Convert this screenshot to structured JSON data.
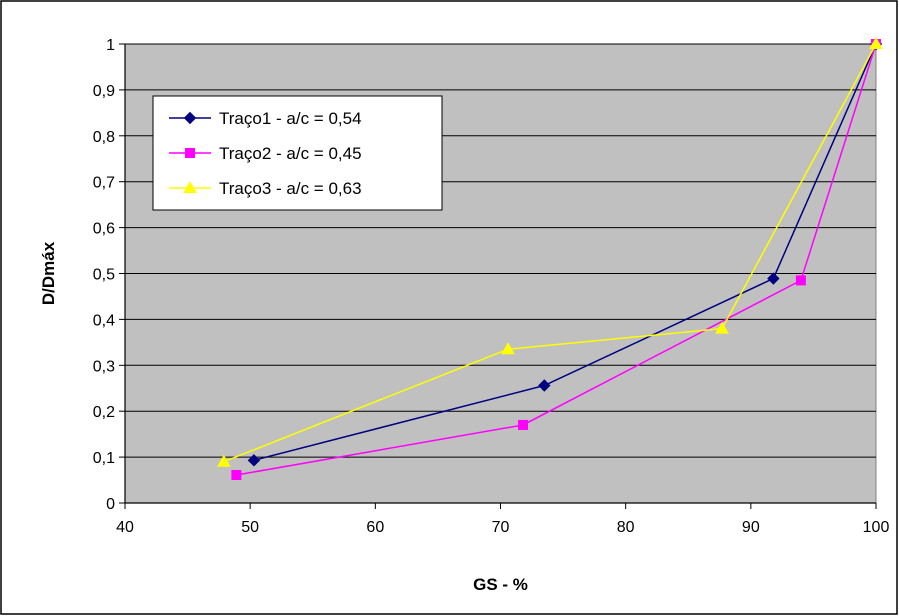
{
  "chart_data": {
    "type": "line",
    "title": "",
    "xlabel": "GS - %",
    "ylabel": "D/Dmáx",
    "xlim": [
      40,
      100
    ],
    "ylim": [
      0,
      1
    ],
    "grid": "horizontal",
    "plot_background": "#C0C0C0",
    "legend_position": "top-left",
    "x_ticks": [
      "40",
      "50",
      "60",
      "70",
      "80",
      "90",
      "100"
    ],
    "y_ticks": [
      "0",
      "0,1",
      "0,2",
      "0,3",
      "0,4",
      "0,5",
      "0,6",
      "0,7",
      "0,8",
      "0,9",
      "1"
    ],
    "series": [
      {
        "name": "Traço1 - a/c = 0,54",
        "color": "#000080",
        "marker": "diamond",
        "points": [
          [
            50.3,
            0.093
          ],
          [
            73.5,
            0.256
          ],
          [
            91.8,
            0.489
          ],
          [
            100,
            1.0
          ]
        ]
      },
      {
        "name": "Traço2 - a/c = 0,45",
        "color": "#FF00FF",
        "marker": "square",
        "points": [
          [
            48.9,
            0.061
          ],
          [
            71.8,
            0.17
          ],
          [
            94.0,
            0.485
          ],
          [
            100,
            1.0
          ]
        ]
      },
      {
        "name": "Traço3 - a/c = 0,63",
        "color": "#FFFF00",
        "marker": "triangle",
        "points": [
          [
            47.9,
            0.09
          ],
          [
            70.6,
            0.335
          ],
          [
            87.7,
            0.38
          ],
          [
            100,
            1.0
          ]
        ]
      }
    ]
  }
}
